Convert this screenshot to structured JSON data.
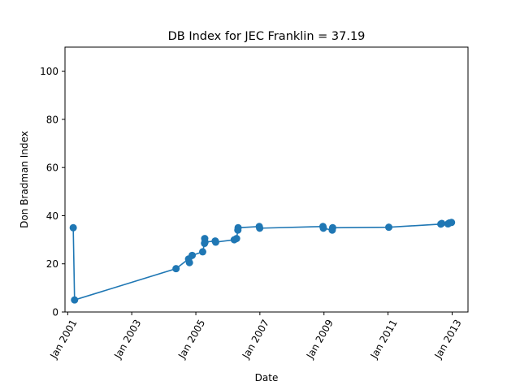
{
  "chart_data": {
    "type": "line",
    "title": "DB Index for JEC Franklin = 37.19",
    "xlabel": "Date",
    "ylabel": "Don Bradman Index",
    "xlim": [
      "2000-12-01",
      "2013-07-01"
    ],
    "ylim": [
      0,
      110
    ],
    "x_ticks": [
      {
        "date": "2001-01-01",
        "label": "Jan 2001"
      },
      {
        "date": "2003-01-01",
        "label": "Jan 2003"
      },
      {
        "date": "2005-01-01",
        "label": "Jan 2005"
      },
      {
        "date": "2007-01-01",
        "label": "Jan 2007"
      },
      {
        "date": "2009-01-01",
        "label": "Jan 2009"
      },
      {
        "date": "2011-01-01",
        "label": "Jan 2011"
      },
      {
        "date": "2013-01-01",
        "label": "Jan 2013"
      }
    ],
    "y_ticks": [
      0,
      20,
      40,
      60,
      80,
      100
    ],
    "grid": false,
    "marker": "circle",
    "color": "#1f77b4",
    "series": [
      {
        "points": [
          {
            "x": "2001-03-05",
            "y": 35.0
          },
          {
            "x": "2001-03-20",
            "y": 5.0
          },
          {
            "x": "2004-05-20",
            "y": 18.0
          },
          {
            "x": "2004-10-10",
            "y": 22.0
          },
          {
            "x": "2004-10-20",
            "y": 20.5
          },
          {
            "x": "2004-11-20",
            "y": 23.5
          },
          {
            "x": "2005-03-20",
            "y": 25.0
          },
          {
            "x": "2005-04-10",
            "y": 28.5
          },
          {
            "x": "2005-04-12",
            "y": 30.5
          },
          {
            "x": "2005-04-15",
            "y": 29.0
          },
          {
            "x": "2005-08-10",
            "y": 29.5
          },
          {
            "x": "2005-08-15",
            "y": 29.0
          },
          {
            "x": "2006-03-15",
            "y": 30.0
          },
          {
            "x": "2006-04-10",
            "y": 30.5
          },
          {
            "x": "2006-04-25",
            "y": 34.0
          },
          {
            "x": "2006-04-28",
            "y": 35.0
          },
          {
            "x": "2006-12-25",
            "y": 35.5
          },
          {
            "x": "2006-12-30",
            "y": 34.8
          },
          {
            "x": "2008-12-20",
            "y": 35.5
          },
          {
            "x": "2008-12-25",
            "y": 34.8
          },
          {
            "x": "2009-04-05",
            "y": 34.0
          },
          {
            "x": "2009-04-10",
            "y": 35.0
          },
          {
            "x": "2011-01-10",
            "y": 35.2
          },
          {
            "x": "2012-08-25",
            "y": 36.5
          },
          {
            "x": "2012-09-05",
            "y": 36.8
          },
          {
            "x": "2012-11-15",
            "y": 36.6
          },
          {
            "x": "2012-12-01",
            "y": 37.0
          },
          {
            "x": "2012-12-25",
            "y": 37.19
          }
        ]
      }
    ]
  }
}
